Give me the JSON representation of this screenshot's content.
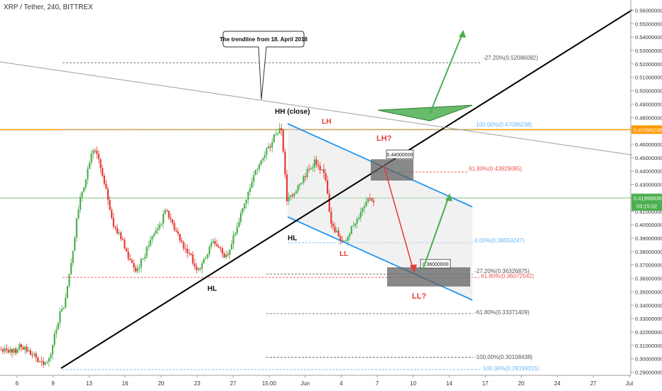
{
  "header": {
    "title": "XRP / Tether, 240, BITTREX"
  },
  "colors": {
    "up": "#4caf50",
    "down": "#e53935",
    "channel": "#2196f3",
    "trend": "#000000",
    "orange": "#ff9800",
    "green_line": "#66bb6a",
    "fib_red": "#ef5350",
    "fib_blue": "#64b5f6",
    "axis_text": "#333333"
  },
  "price_axis": {
    "ticks": [
      "0.56000000",
      "0.55000000",
      "0.54000000",
      "0.53000000",
      "0.52000000",
      "0.51000000",
      "0.50000000",
      "0.49000000",
      "0.48000000",
      "0.47000000",
      "0.46000000",
      "0.45000000",
      "0.44000000",
      "0.43000000",
      "0.42000000",
      "0.41000000",
      "0.40000000",
      "0.39000000",
      "0.38000000",
      "0.37000000",
      "0.36000000",
      "0.35000000",
      "0.34000000",
      "0.33000000",
      "0.32000000",
      "0.31000000",
      "0.30000000",
      "0.29000000"
    ],
    "last_price": "0.41999836",
    "countdown": "03:15:02",
    "orange_level": "0.47096238"
  },
  "time_axis": {
    "ticks": [
      "6",
      "9",
      "13",
      "16",
      "20",
      "23",
      "27",
      "15:00",
      "Jun",
      "4",
      "7",
      "10",
      "14",
      "17",
      "20",
      "24",
      "27",
      "Jul"
    ]
  },
  "annotations": {
    "callout": "The trendline from 18. April 2018",
    "hh": "HH (close)",
    "lh": "LH",
    "lh_q": "LH?",
    "hl_left": "HL",
    "hl_right": "HL",
    "ll": "LL",
    "ll_q": "LL?",
    "box_upper": "0.44000000",
    "box_lower": "0.36000000"
  },
  "fib_labels": [
    "-27.20%(0.52086082)",
    "100.00%(0.47096238)",
    "61.80%(0.43929085)",
    "0.00%(0.38650247)",
    "-27.20%(0.36326875)",
    "61.80%(0.36072542)",
    "-61.80%(0.33371409)",
    "-100.00%(0.30108438)",
    "100.00%(0.29199315)"
  ],
  "chart_data": {
    "type": "candlestick",
    "title": "XRP / Tether, 240, BITTREX",
    "ylim": [
      0.285,
      0.565
    ],
    "xlabel": "",
    "ylabel": "",
    "x_ticks": [
      "6",
      "9",
      "13",
      "16",
      "20",
      "23",
      "27",
      "15:00",
      "Jun",
      "4",
      "7",
      "10",
      "14",
      "17",
      "20",
      "24",
      "27",
      "Jul"
    ],
    "price_path_close": [
      0.307,
      0.308,
      0.305,
      0.309,
      0.306,
      0.303,
      0.298,
      0.295,
      0.3,
      0.318,
      0.335,
      0.345,
      0.372,
      0.405,
      0.425,
      0.442,
      0.455,
      0.448,
      0.43,
      0.412,
      0.398,
      0.39,
      0.38,
      0.372,
      0.368,
      0.375,
      0.385,
      0.393,
      0.4,
      0.41,
      0.403,
      0.395,
      0.388,
      0.38,
      0.372,
      0.368,
      0.375,
      0.383,
      0.386,
      0.382,
      0.378,
      0.385,
      0.398,
      0.412,
      0.425,
      0.438,
      0.446,
      0.452,
      0.458,
      0.468,
      0.471,
      0.418,
      0.422,
      0.43,
      0.436,
      0.442,
      0.448,
      0.44,
      0.434,
      0.4,
      0.395,
      0.388,
      0.392,
      0.4,
      0.406,
      0.413,
      0.42,
      0.418
    ],
    "levels": {
      "orange_horizontal": 0.47096238,
      "last_price": 0.41999836,
      "fib": [
        0.52086082,
        0.47096238,
        0.43929085,
        0.38650247,
        0.36326875,
        0.36072542,
        0.33371409,
        0.30108438,
        0.29199315
      ]
    },
    "projection_boxes": [
      0.44,
      0.36
    ]
  }
}
